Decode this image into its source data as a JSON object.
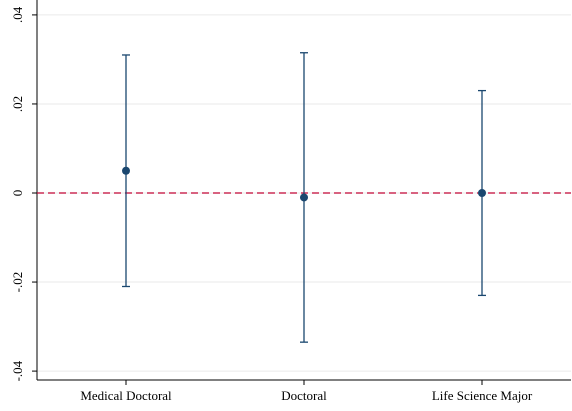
{
  "chart_data": {
    "type": "errorbar",
    "categories": [
      "Medical Doctoral",
      "Doctoral",
      "Life Science Major"
    ],
    "values": [
      0.005,
      -0.001,
      0
    ],
    "errors": [
      0.026,
      0.0325,
      0.023
    ],
    "color": "#1a476f",
    "ylim": [
      -0.042,
      0.042
    ],
    "yticks": [
      {
        "value": -0.04,
        "label": "-.04"
      },
      {
        "value": -0.02,
        "label": "-.02"
      },
      0,
      {
        "value": 0.02,
        "label": ".02"
      },
      {
        "value": 0.04,
        "label": ".04"
      }
    ],
    "grid": true,
    "hline": 0,
    "hline_color": "#c10534"
  }
}
